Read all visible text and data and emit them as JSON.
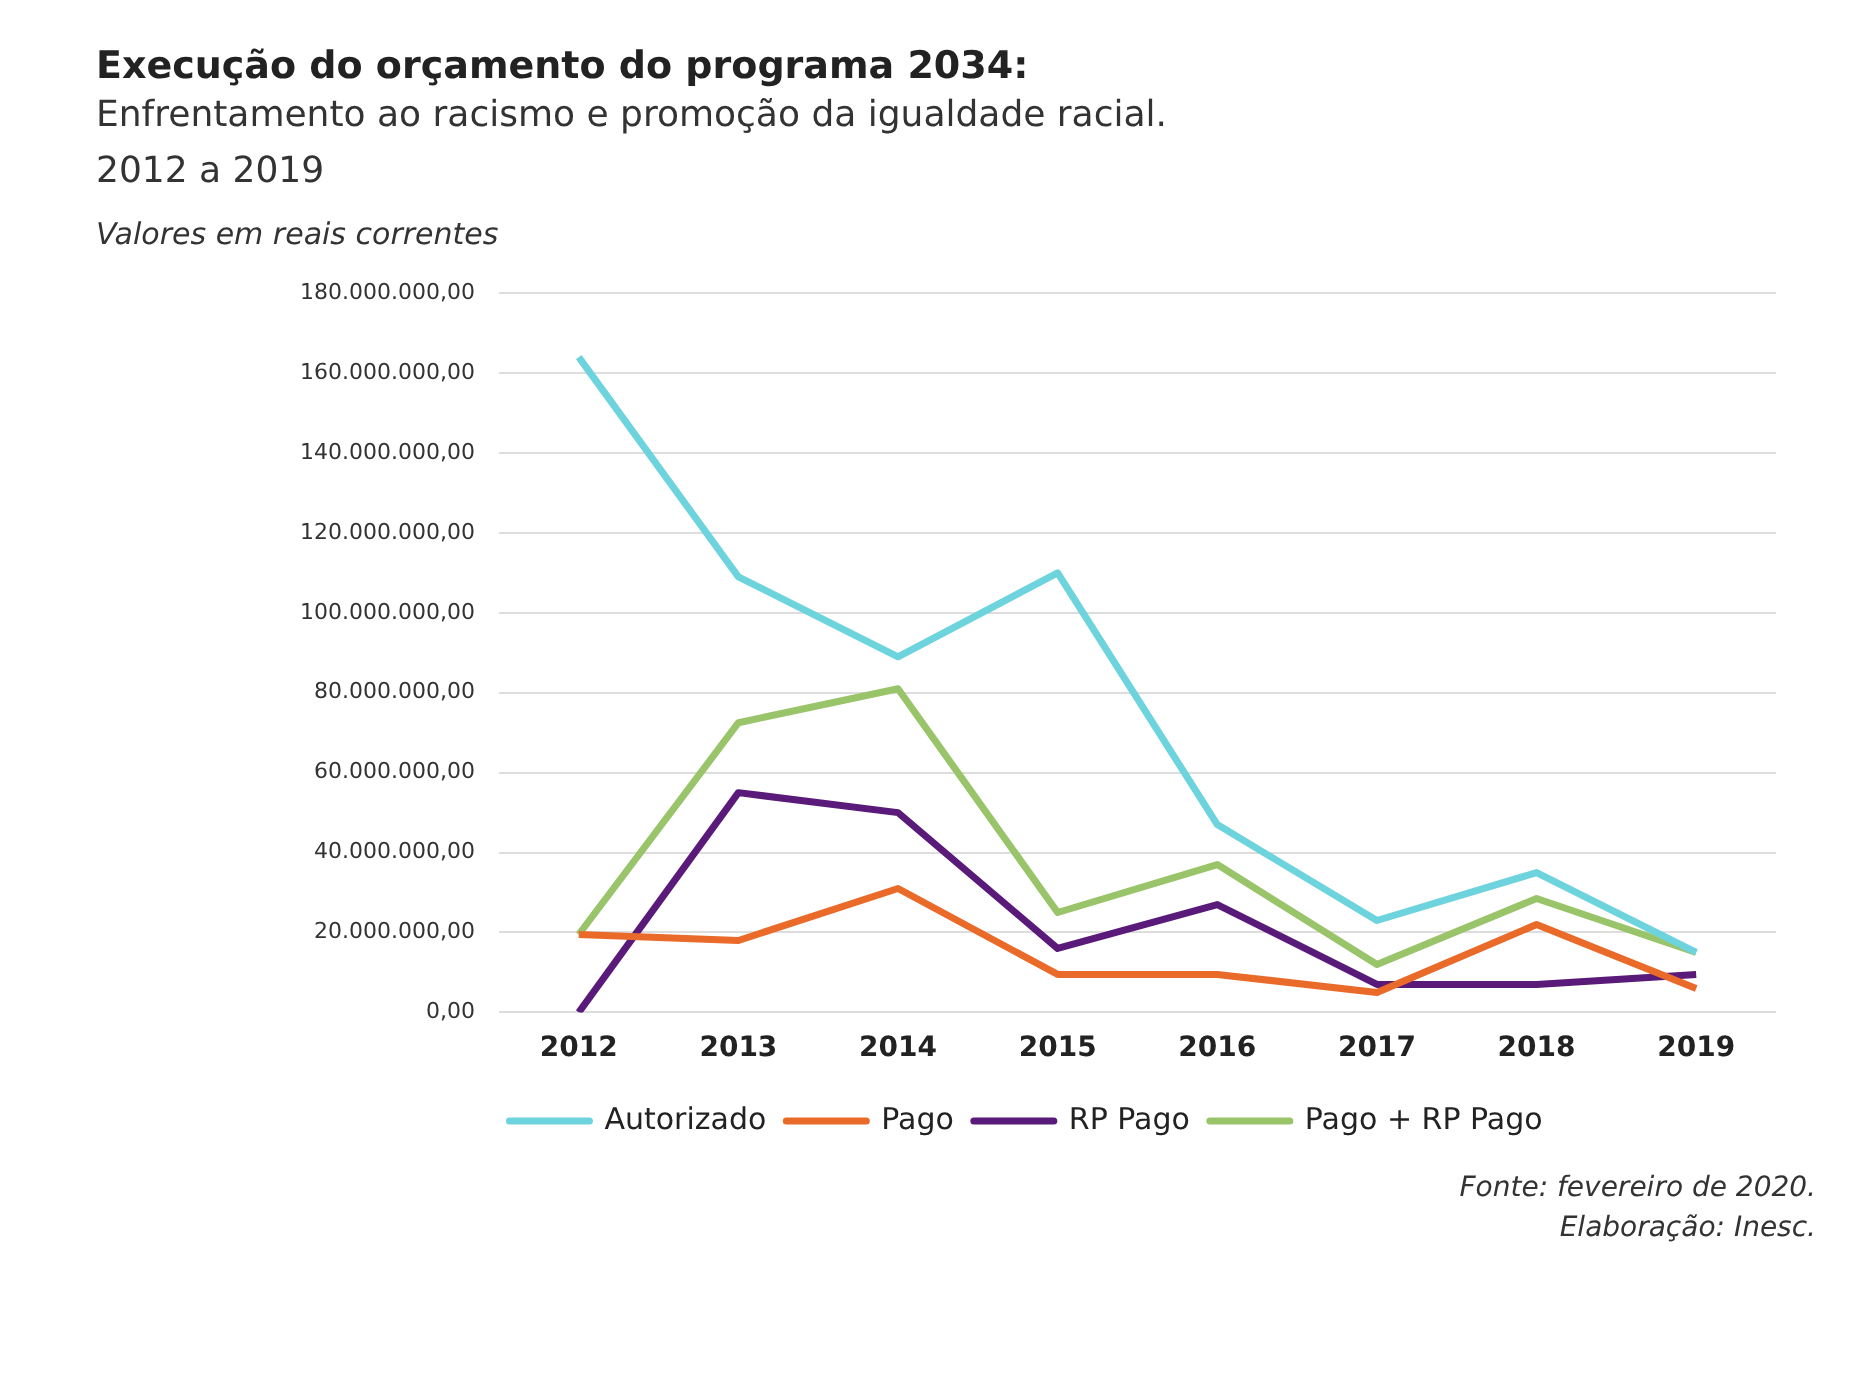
{
  "chart_data": {
    "type": "line",
    "title": "Execução do orçamento do programa 2034:",
    "subtitle": "Enfrentamento ao racismo e promoção da igualdade racial.\n2012 a 2019",
    "ylabel": "Valores em reais correntes",
    "categories": [
      "2012",
      "2013",
      "2014",
      "2015",
      "2016",
      "2017",
      "2018",
      "2019"
    ],
    "series": [
      {
        "name": "Autorizado",
        "color": "#6dd3dc",
        "values": [
          164000000,
          109000000,
          89000000,
          110000000,
          47000000,
          23000000,
          35000000,
          15000000
        ]
      },
      {
        "name": "Pago",
        "color": "#ea6a2a",
        "values": [
          19500000,
          18000000,
          31000000,
          9500000,
          9500000,
          5000000,
          22000000,
          6000000
        ]
      },
      {
        "name": "RP Pago",
        "color": "#5a1a7a",
        "values": [
          0,
          55000000,
          50000000,
          16000000,
          27000000,
          7000000,
          7000000,
          9500000
        ]
      },
      {
        "name": "Pago + RP Pago",
        "color": "#99c46a",
        "values": [
          19500000,
          72500000,
          81000000,
          25000000,
          37000000,
          12000000,
          28500000,
          15000000
        ]
      }
    ],
    "ylim": [
      0,
      180000000
    ],
    "yticks": [
      {
        "value": 0,
        "label": "0,00"
      },
      {
        "value": 20000000,
        "label": "20.000.000,00"
      },
      {
        "value": 40000000,
        "label": "40.000.000,00"
      },
      {
        "value": 60000000,
        "label": "60.000.000,00"
      },
      {
        "value": 80000000,
        "label": "80.000.000,00"
      },
      {
        "value": 100000000,
        "label": "100.000.000,00"
      },
      {
        "value": 120000000,
        "label": "120.000.000,00"
      },
      {
        "value": 140000000,
        "label": "140.000.000,00"
      },
      {
        "value": 160000000,
        "label": "160.000.000,00"
      },
      {
        "value": 180000000,
        "label": "180.000.000,00"
      }
    ],
    "grid": "y",
    "legend": "bottom",
    "marker": "none",
    "line_style": "solid",
    "annotations": [
      "Fonte: fevereiro de 2020.",
      "Elaboração: Inesc."
    ]
  }
}
